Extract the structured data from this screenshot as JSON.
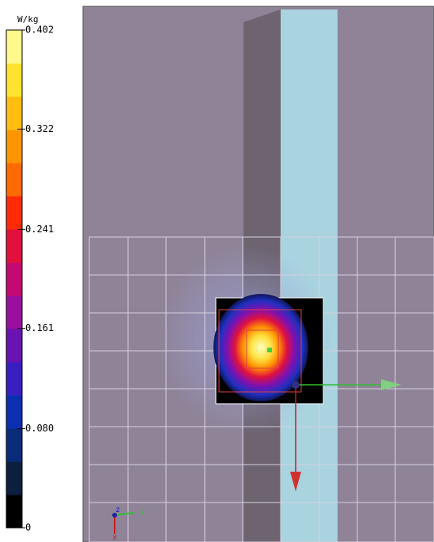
{
  "colorbar": {
    "unit": "W/kg",
    "lim": [
      0,
      0.402
    ],
    "ticks": [
      0,
      {
        "value": 0.08,
        "label": "0.080"
      },
      0.161,
      0.241,
      0.322,
      0.402
    ],
    "colors": [
      "#000000",
      "#0c1f3f",
      "#0a2a7a",
      "#0b2fb0",
      "#3a1fc0",
      "#6a12b2",
      "#98109c",
      "#c40a72",
      "#e2103c",
      "#ff2a08",
      "#ff6a00",
      "#ff9600",
      "#ffbe10",
      "#ffe230",
      "#fff88a"
    ]
  },
  "axes_triad": {
    "labels": [
      "z",
      "y",
      "x"
    ]
  }
}
